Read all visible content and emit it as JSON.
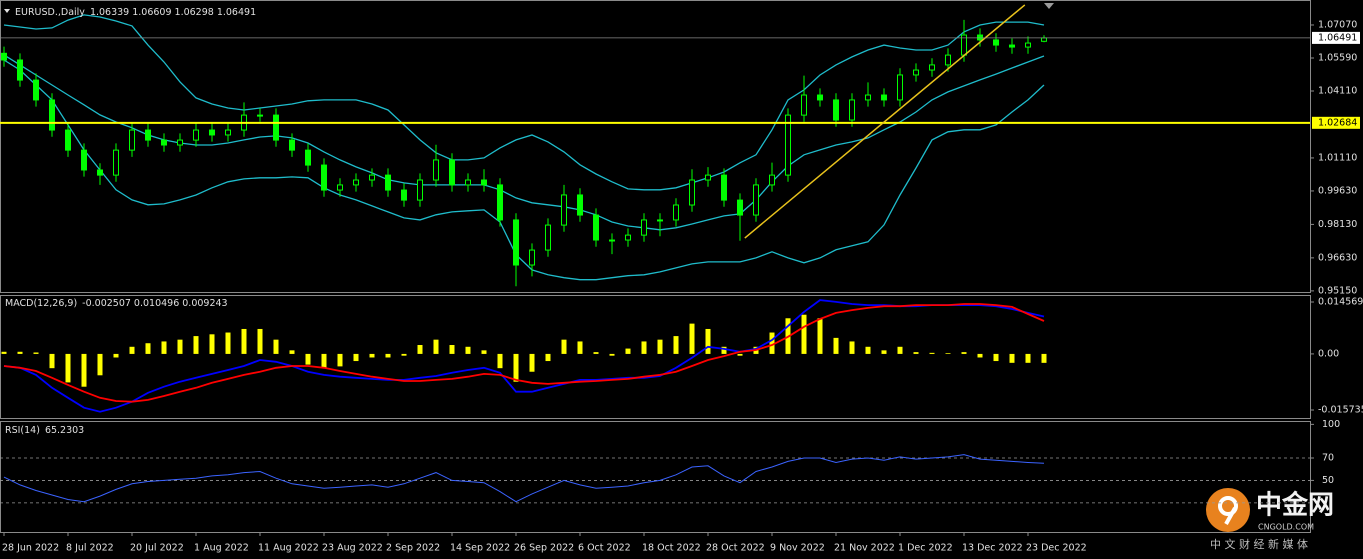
{
  "chart_data": [
    {
      "type": "candlestick",
      "title": "EURUSD.,Daily",
      "categories": [
        "28 Jun 2022",
        null,
        null,
        null,
        "8 Jul 2022",
        null,
        null,
        null,
        "20 Jul 2022",
        null,
        null,
        null,
        "1 Aug 2022",
        null,
        null,
        null,
        "11 Aug 2022",
        null,
        null,
        null,
        "23 Aug 2022",
        null,
        null,
        null,
        "2 Sep 2022",
        null,
        null,
        null,
        "14 Sep 2022",
        null,
        null,
        null,
        "26 Sep 2022",
        null,
        null,
        null,
        "6 Oct 2022",
        null,
        null,
        null,
        "18 Oct 2022",
        null,
        null,
        null,
        "28 Oct 2022",
        null,
        null,
        null,
        "9 Nov 2022",
        null,
        null,
        null,
        "21 Nov 2022",
        null,
        null,
        null,
        "1 Dec 2022",
        null,
        null,
        null,
        "13 Dec 2022",
        null,
        null,
        null,
        "23 Dec 2022",
        null
      ],
      "open": [
        1.058,
        1.055,
        1.046,
        1.0371,
        1.0236,
        1.0146,
        1.0057,
        1.0034,
        1.0146,
        1.0236,
        1.0191,
        1.0169,
        1.0191,
        1.0236,
        1.0214,
        1.0236,
        1.0303,
        1.0303,
        1.0191,
        1.0146,
        1.0079,
        0.9967,
        0.999,
        1.0012,
        1.0034,
        0.9967,
        0.9922,
        1.0012,
        1.0102,
        0.999,
        1.0012,
        0.999,
        0.9833,
        0.9631,
        0.9698,
        0.981,
        0.9945,
        0.9855,
        0.9743,
        0.9743,
        0.9765,
        0.9833,
        0.9833,
        0.99,
        1.0012,
        1.0034,
        0.9922,
        0.9855,
        0.999,
        1.0034,
        1.0303,
        1.0393,
        1.0371,
        1.0281,
        1.0371,
        1.0393,
        1.0371,
        1.0483,
        1.0505,
        1.0528,
        1.0572,
        1.0662,
        1.064,
        1.0617,
        1.0608,
        1.06339
      ],
      "high": [
        1.061,
        1.058,
        1.049,
        1.0401,
        1.0266,
        1.0176,
        1.0087,
        1.0176,
        1.0266,
        1.0266,
        1.0221,
        1.0221,
        1.0266,
        1.0266,
        1.0266,
        1.036,
        1.0333,
        1.0333,
        1.0221,
        1.0176,
        1.0109,
        1.002,
        1.0042,
        1.0064,
        1.0064,
        0.9997,
        1.0042,
        1.017,
        1.0132,
        1.0042,
        1.006,
        1.002,
        0.9863,
        0.9728,
        0.984,
        0.999,
        0.9975,
        0.9885,
        0.9773,
        0.9795,
        0.9863,
        0.9863,
        0.993,
        1.006,
        1.007,
        1.0064,
        0.9952,
        1.002,
        1.009,
        1.0333,
        1.048,
        1.0423,
        1.0401,
        1.0401,
        1.045,
        1.0423,
        1.0513,
        1.0535,
        1.0558,
        1.0602,
        1.073,
        1.0692,
        1.067,
        1.0647,
        1.0656,
        1.06609
      ],
      "low": [
        1.052,
        1.043,
        1.0341,
        1.0206,
        1.0116,
        1.0027,
        0.999,
        1.0004,
        1.0116,
        1.0161,
        1.0139,
        1.0139,
        1.0161,
        1.0184,
        1.0184,
        1.0206,
        1.0273,
        1.0161,
        1.0116,
        1.0049,
        0.9937,
        0.9937,
        0.996,
        0.9982,
        0.9937,
        0.9892,
        0.9892,
        0.9982,
        0.996,
        0.996,
        0.996,
        0.9803,
        0.9536,
        0.958,
        0.9668,
        0.978,
        0.9825,
        0.9713,
        0.968,
        0.9713,
        0.9735,
        0.976,
        0.9803,
        0.987,
        0.9982,
        0.9892,
        0.974,
        0.9825,
        0.996,
        1.0004,
        1.0273,
        1.0341,
        1.0251,
        1.0251,
        1.0341,
        1.0341,
        1.0341,
        1.0453,
        1.0475,
        1.0498,
        1.0542,
        1.061,
        1.0587,
        1.0578,
        1.0578,
        1.06298
      ],
      "close": [
        1.055,
        1.046,
        1.0371,
        1.0236,
        1.0146,
        1.0057,
        1.0034,
        1.0146,
        1.0236,
        1.0191,
        1.0169,
        1.0191,
        1.0236,
        1.0214,
        1.0236,
        1.0303,
        1.0303,
        1.0191,
        1.0146,
        1.0079,
        0.9967,
        0.999,
        1.0012,
        1.0034,
        0.9967,
        0.9922,
        1.0012,
        1.0102,
        0.999,
        1.0012,
        0.999,
        0.9833,
        0.9631,
        0.9698,
        0.981,
        0.9945,
        0.9855,
        0.9743,
        0.9743,
        0.9765,
        0.9833,
        0.9833,
        0.99,
        1.0012,
        1.0034,
        0.9922,
        0.9855,
        0.999,
        1.0034,
        1.0303,
        1.0393,
        1.0371,
        1.0281,
        1.0371,
        1.0393,
        1.0371,
        1.0483,
        1.0505,
        1.0528,
        1.0572,
        1.0662,
        1.064,
        1.0617,
        1.0608,
        1.0626,
        1.06491
      ],
      "color": "#00ff00",
      "bands": {
        "color": "#1fbccb",
        "upper": [
          1.0707,
          1.0698,
          1.0689,
          1.0694,
          1.0729,
          1.0752,
          1.0743,
          1.0725,
          1.0703,
          1.0617,
          1.0541,
          1.0452,
          1.038,
          1.0353,
          1.0335,
          1.0326,
          1.0335,
          1.0344,
          1.0353,
          1.0367,
          1.0371,
          1.0371,
          1.0371,
          1.0353,
          1.0326,
          1.0259,
          1.0192,
          1.0134,
          1.0102,
          1.0102,
          1.0111,
          1.0156,
          1.0192,
          1.0214,
          1.0183,
          1.0138,
          1.008,
          1.0039,
          1.0004,
          0.9972,
          0.9968,
          0.9968,
          0.9977,
          0.9999,
          1.0022,
          1.0048,
          1.0089,
          1.0125,
          1.0237,
          1.0371,
          1.0416,
          1.0483,
          1.0528,
          1.0564,
          1.0595,
          1.0617,
          1.0604,
          1.0595,
          1.0595,
          1.0617,
          1.0676,
          1.0707,
          1.072,
          1.072,
          1.072,
          1.0707
        ],
        "middle": [
          1.0573,
          1.0528,
          1.0483,
          1.0438,
          1.0393,
          1.0349,
          1.0304,
          1.0272,
          1.0246,
          1.0214,
          1.0192,
          1.0178,
          1.0169,
          1.0169,
          1.0178,
          1.0192,
          1.0205,
          1.021,
          1.0201,
          1.0178,
          1.0138,
          1.0102,
          1.0071,
          1.0044,
          1.0013,
          0.9999,
          0.999,
          0.999,
          0.999,
          0.999,
          0.999,
          0.9968,
          0.9932,
          0.991,
          0.9901,
          0.9892,
          0.9878,
          0.9856,
          0.9824,
          0.9806,
          0.9798,
          0.9789,
          0.9798,
          0.9815,
          0.9833,
          0.9851,
          0.986,
          0.9923,
          1.0004,
          1.0075,
          1.0125,
          1.0147,
          1.0169,
          1.0183,
          1.0201,
          1.0237,
          1.0272,
          1.0317,
          1.0371,
          1.0407,
          1.0434,
          1.0461,
          1.0487,
          1.0514,
          1.0541,
          1.0568
        ],
        "lower": [
          1.055,
          1.0505,
          1.0438,
          1.0371,
          1.0259,
          1.0147,
          1.0057,
          0.9968,
          0.9923,
          0.9901,
          0.9905,
          0.9923,
          0.9945,
          0.9977,
          1.0004,
          1.0017,
          1.0022,
          1.0022,
          1.0026,
          1.0022,
          0.9977,
          0.9945,
          0.9923,
          0.9896,
          0.9869,
          0.9842,
          0.9833,
          0.9856,
          0.9869,
          0.9874,
          0.9878,
          0.9824,
          0.9677,
          0.9609,
          0.9587,
          0.9574,
          0.9565,
          0.9565,
          0.9574,
          0.9583,
          0.9587,
          0.96,
          0.9618,
          0.9636,
          0.9645,
          0.9645,
          0.9645,
          0.9663,
          0.969,
          0.9663,
          0.9641,
          0.9663,
          0.9699,
          0.9717,
          0.9735,
          0.9811,
          0.9945,
          1.0066,
          1.0192,
          1.0228,
          1.0237,
          1.0237,
          1.0259,
          1.0317,
          1.0371,
          1.0438
        ]
      },
      "hline": {
        "value": 1.02684,
        "color": "#ffff00"
      },
      "trendline": {
        "from": [
          46.3,
          0.9752
        ],
        "to": [
          63.8,
          1.0797
        ],
        "color": "#e8c21c"
      },
      "ylim": [
        0.951,
        1.0819
      ],
      "yticks": [
        {
          "value": 1.0707,
          "label": "1.07070"
        },
        {
          "value": 1.0559,
          "label": "1.05590"
        },
        {
          "value": 1.0411,
          "label": "1.04110"
        },
        {
          "value": 1.0111,
          "label": "1.01110"
        },
        {
          "value": 0.9963,
          "label": "0.99630"
        },
        {
          "value": 0.9813,
          "label": "0.98130"
        },
        {
          "value": 0.9663,
          "label": "0.96630"
        },
        {
          "value": 0.9515,
          "label": "0.95150"
        }
      ]
    },
    {
      "type": "macd",
      "title": "MACD(12,26,9)",
      "histogram": {
        "color": "#ffff00",
        "values": [
          0.0006,
          0.0006,
          0.0004,
          -0.004,
          -0.008,
          -0.0092,
          -0.006,
          -0.001,
          0.002,
          0.003,
          0.0035,
          0.004,
          0.005,
          0.0055,
          0.006,
          0.007,
          0.007,
          0.004,
          0.001,
          -0.003,
          -0.004,
          -0.0035,
          -0.002,
          -0.001,
          -0.001,
          -0.0005,
          0.0025,
          0.004,
          0.0025,
          0.002,
          0.001,
          -0.004,
          -0.0078,
          -0.005,
          -0.002,
          0.004,
          0.0035,
          0.0005,
          -0.0005,
          0.0015,
          0.0035,
          0.004,
          0.005,
          0.0085,
          0.007,
          0.002,
          -0.0005,
          0.002,
          0.006,
          0.01,
          0.011,
          0.01,
          0.0045,
          0.0035,
          0.002,
          0.001,
          0.002,
          0.0005,
          0.0003,
          0.0002,
          0.0005,
          -0.001,
          -0.002,
          -0.0025,
          -0.0025,
          -0.002507
        ]
      },
      "series": [
        {
          "color": "#0000ff",
          "values": [
            -0.0034,
            -0.0039,
            -0.0059,
            -0.0095,
            -0.0123,
            -0.0151,
            -0.0162,
            -0.0151,
            -0.0134,
            -0.0109,
            -0.0092,
            -0.0078,
            -0.0067,
            -0.0056,
            -0.0045,
            -0.0034,
            -0.0017,
            -0.0022,
            -0.0034,
            -0.005,
            -0.0059,
            -0.0064,
            -0.0067,
            -0.007,
            -0.0073,
            -0.0073,
            -0.0067,
            -0.0062,
            -0.0053,
            -0.0045,
            -0.0039,
            -0.0053,
            -0.0106,
            -0.0106,
            -0.0095,
            -0.0084,
            -0.0073,
            -0.0073,
            -0.007,
            -0.0067,
            -0.0067,
            -0.0062,
            -0.0039,
            -0.0011,
            0.002,
            0.0014,
            0.0006,
            0.0014,
            0.0039,
            0.0078,
            0.0118,
            0.0151,
            0.0146,
            0.014,
            0.0137,
            0.0137,
            0.0134,
            0.0134,
            0.0137,
            0.0137,
            0.0137,
            0.0137,
            0.0134,
            0.0126,
            0.0115,
            0.010496
          ]
        },
        {
          "color": "#ff0000",
          "values": [
            -0.0034,
            -0.0039,
            -0.0048,
            -0.0067,
            -0.0087,
            -0.0106,
            -0.0123,
            -0.0132,
            -0.0134,
            -0.0129,
            -0.0118,
            -0.0106,
            -0.0095,
            -0.0081,
            -0.007,
            -0.0059,
            -0.005,
            -0.0039,
            -0.0034,
            -0.0034,
            -0.0039,
            -0.0048,
            -0.0056,
            -0.0064,
            -0.007,
            -0.0076,
            -0.0076,
            -0.0073,
            -0.007,
            -0.0064,
            -0.0056,
            -0.0059,
            -0.0073,
            -0.0081,
            -0.0084,
            -0.0081,
            -0.0078,
            -0.0076,
            -0.0073,
            -0.007,
            -0.0064,
            -0.0059,
            -0.005,
            -0.0034,
            -0.0017,
            -0.0006,
            0.0006,
            0.0011,
            0.0025,
            0.0048,
            0.0076,
            0.0098,
            0.0115,
            0.0123,
            0.0129,
            0.0134,
            0.0134,
            0.0137,
            0.0137,
            0.0137,
            0.014,
            0.014,
            0.0137,
            0.0132,
            0.0112,
            0.009243
          ]
        }
      ],
      "ylim": [
        -0.01798,
        0.01653
      ],
      "yticks": [
        0.014569,
        {
          "value": 0,
          "label": "0.00"
        },
        -0.015735
      ]
    },
    {
      "type": "line",
      "title": "RSI(14)",
      "color": "#3b63ff",
      "values": [
        53,
        46,
        41,
        37,
        33,
        31,
        36,
        42,
        47,
        49,
        50,
        51,
        52,
        54,
        55,
        57,
        58,
        52,
        47,
        45,
        43,
        44,
        45,
        46,
        44,
        47,
        52,
        57,
        50,
        49,
        48,
        40,
        31,
        38,
        44,
        50,
        46,
        43,
        44,
        45,
        48,
        50,
        55,
        62,
        63,
        54,
        48,
        58,
        62,
        67,
        70,
        70,
        66,
        69,
        70,
        68,
        71,
        69,
        70,
        71,
        73,
        69,
        68,
        67,
        66,
        65.2303
      ],
      "ylim": [
        4,
        103
      ],
      "yticks": [
        100,
        70,
        50
      ],
      "levels": [
        70,
        50,
        30
      ]
    }
  ],
  "watermark": {
    "name": "中金网",
    "domain": "CNGOLD.COM",
    "tagline": "中 文 财 经 新 媒 体"
  }
}
